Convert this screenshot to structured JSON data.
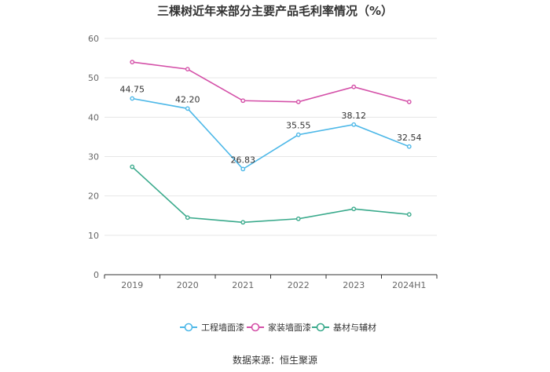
{
  "chart_data": {
    "type": "line",
    "title": "三棵树近年来部分主要产品毛利率情况（%）",
    "source": "数据来源：恒生聚源",
    "categories": [
      "2019",
      "2020",
      "2021",
      "2022",
      "2023",
      "2024H1"
    ],
    "ylim": [
      0,
      60
    ],
    "yticks": [
      0,
      10,
      20,
      30,
      40,
      50,
      60
    ],
    "grid": true,
    "legend_position": "bottom",
    "series": [
      {
        "name": "工程墙面漆",
        "color": "#4db8e8",
        "values": [
          44.75,
          42.2,
          26.83,
          35.55,
          38.12,
          32.54
        ],
        "labels": [
          "44.75",
          "42.20",
          "26.83",
          "35.55",
          "38.12",
          "32.54"
        ]
      },
      {
        "name": "家装墙面漆",
        "color": "#d450a8",
        "values": [
          54.0,
          52.2,
          44.2,
          43.9,
          47.7,
          43.9
        ],
        "labels": []
      },
      {
        "name": "基材与辅材",
        "color": "#3aaa8c",
        "values": [
          27.4,
          14.5,
          13.3,
          14.2,
          16.7,
          15.3
        ],
        "labels": []
      }
    ]
  }
}
